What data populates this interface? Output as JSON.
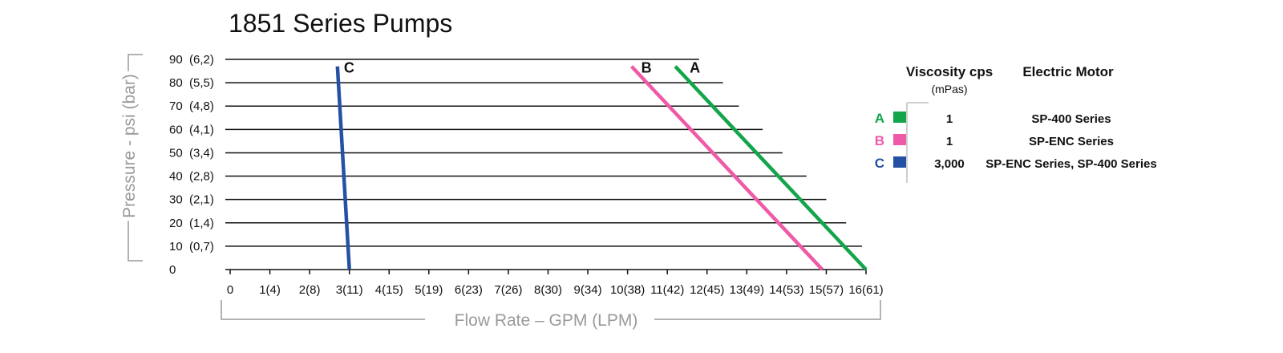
{
  "chart_data": {
    "type": "line",
    "title": "1851 Series Pumps",
    "xlabel": "Flow Rate – GPM (LPM)",
    "ylabel": "Pressure - psi (bar)",
    "xlim": [
      0,
      16
    ],
    "ylim": [
      0,
      90
    ],
    "x_ticks": [
      {
        "value": 0,
        "label": "0"
      },
      {
        "value": 1,
        "label": "1(4)"
      },
      {
        "value": 2,
        "label": "2(8)"
      },
      {
        "value": 3,
        "label": "3(11)"
      },
      {
        "value": 4,
        "label": "4(15)"
      },
      {
        "value": 5,
        "label": "5(19)"
      },
      {
        "value": 6,
        "label": "6(23)"
      },
      {
        "value": 7,
        "label": "7(26)"
      },
      {
        "value": 8,
        "label": "8(30)"
      },
      {
        "value": 9,
        "label": "9(34)"
      },
      {
        "value": 10,
        "label": "10(38)"
      },
      {
        "value": 11,
        "label": "11(42)"
      },
      {
        "value": 12,
        "label": "12(45)"
      },
      {
        "value": 13,
        "label": "13(49)"
      },
      {
        "value": 14,
        "label": "14(53)"
      },
      {
        "value": 15,
        "label": "15(57)"
      },
      {
        "value": 16,
        "label": "16(61)"
      }
    ],
    "y_ticks": [
      {
        "value": 0,
        "label": "0"
      },
      {
        "value": 10,
        "label": "10  (0,7)"
      },
      {
        "value": 20,
        "label": "20  (1,4)"
      },
      {
        "value": 30,
        "label": "30  (2,1)"
      },
      {
        "value": 40,
        "label": "40  (2,8)"
      },
      {
        "value": 50,
        "label": "50  (3,4)"
      },
      {
        "value": 60,
        "label": "60  (4,1)"
      },
      {
        "value": 70,
        "label": "70  (4,8)"
      },
      {
        "value": 80,
        "label": "80  (5,5)"
      },
      {
        "value": 90,
        "label": "90  (6,2)"
      }
    ],
    "gridlines_end_x": [
      16,
      15.9,
      15.5,
      15.0,
      14.5,
      13.9,
      13.4,
      12.8,
      12.4,
      11.8
    ],
    "series": [
      {
        "name": "A",
        "color": "#12a54a",
        "x": [
          11.2,
          16.0
        ],
        "y": [
          87,
          0
        ]
      },
      {
        "name": "B",
        "color": "#ef5aa8",
        "x": [
          10.1,
          14.9
        ],
        "y": [
          87,
          0
        ]
      },
      {
        "name": "C",
        "color": "#2451a4",
        "x": [
          2.7,
          3.0
        ],
        "y": [
          87,
          0
        ]
      }
    ],
    "legend": {
      "headers": {
        "viscosity": "Viscosity cps",
        "viscosity_unit": "(mPas)",
        "motor": "Electric Motor"
      },
      "rows": [
        {
          "letter": "A",
          "color": "#12a54a",
          "viscosity": "1",
          "motor": "SP-400 Series"
        },
        {
          "letter": "B",
          "color": "#ef5aa8",
          "viscosity": "1",
          "motor": "SP-ENC Series"
        },
        {
          "letter": "C",
          "color": "#2451a4",
          "viscosity": "3,000",
          "motor": "SP-ENC Series, SP-400 Series"
        }
      ]
    }
  }
}
